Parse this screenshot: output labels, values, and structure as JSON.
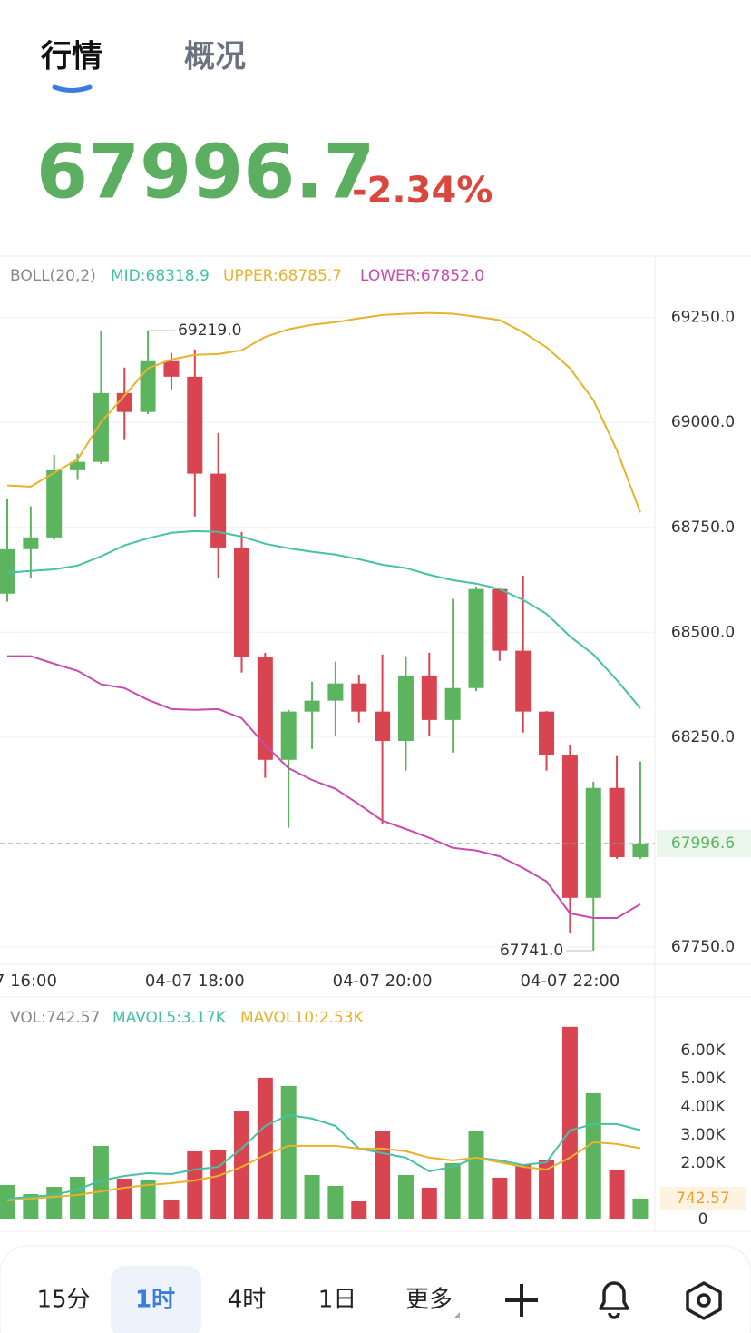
{
  "tabs": [
    "行情",
    "概况"
  ],
  "price": "67996.7",
  "change": "-2.34%",
  "chart_data": [
    {
      "type": "candlestick",
      "indicator": "BOLL(20,2)",
      "categories": [
        "04-07 16:00",
        null,
        null,
        null,
        null,
        null,
        null,
        null,
        "04-07 18:00",
        null,
        null,
        null,
        null,
        null,
        null,
        null,
        "04-07 20:00",
        null,
        null,
        null,
        null,
        null,
        null,
        null,
        "04-07 22:00",
        null,
        null,
        null
      ],
      "open": [
        68592,
        68698,
        68726,
        68886,
        68906,
        69070,
        69025,
        69146,
        69109,
        68878,
        68702,
        68440,
        68196,
        68311,
        68337,
        68378,
        68311,
        68241,
        68397,
        68291,
        68367,
        68603,
        68456,
        68311,
        68207,
        67867,
        68129,
        67964
      ],
      "high": [
        68819,
        68800,
        68923,
        68925,
        69218,
        69131,
        69219.0,
        69166,
        69174,
        68975,
        68739,
        68451,
        68315,
        68382,
        68430,
        68399,
        68447,
        68443,
        68451,
        68579,
        68609,
        68605,
        68635,
        68312,
        68231,
        68144,
        68205,
        68192
      ],
      "low": [
        68573,
        68629,
        68720,
        68863,
        68901,
        68958,
        69020,
        69079,
        68776,
        68629,
        68404,
        68153,
        68034,
        68222,
        68252,
        68285,
        68044,
        68170,
        68252,
        68213,
        68360,
        68432,
        68261,
        68170,
        67782,
        67741.0,
        67960,
        67960
      ],
      "close": [
        68698,
        68726,
        68886,
        68906,
        69070,
        69025,
        69146,
        69109,
        68878,
        68702,
        68440,
        68196,
        68311,
        68337,
        68378,
        68311,
        68241,
        68397,
        68291,
        68367,
        68603,
        68456,
        68311,
        68207,
        67867,
        68129,
        67964,
        67996.6
      ],
      "up_color": "#5cb45f",
      "down_color": "#d84450",
      "series": [
        {
          "name": "MID:68318.9",
          "color": "#45c1a6",
          "values": [
            68642,
            68646,
            68650,
            68659,
            68681,
            68707,
            68724,
            68737,
            68741,
            68739,
            68728,
            68711,
            68700,
            68692,
            68685,
            68674,
            68661,
            68653,
            68637,
            68624,
            68616,
            68603,
            68577,
            68544,
            68490,
            68447,
            68386,
            68318.9
          ]
        },
        {
          "name": "UPPER:68785.7",
          "color": "#e8b22c",
          "values": [
            68850,
            68847,
            68880,
            68912,
            69001,
            69064,
            69129,
            69150,
            69161,
            69163,
            69172,
            69204,
            69222,
            69233,
            69239,
            69248,
            69256,
            69259,
            69261,
            69259,
            69252,
            69244,
            69215,
            69179,
            69129,
            69053,
            68934,
            68785.7
          ]
        },
        {
          "name": "LOWER:67852.0",
          "color": "#c94ab0",
          "values": [
            68443,
            68443,
            68425,
            68408,
            68376,
            68367,
            68339,
            68317,
            68315,
            68317,
            68295,
            68231,
            68176,
            68148,
            68127,
            68090,
            68051,
            68031,
            68010,
            67986,
            67980,
            67966,
            67938,
            67906,
            67830,
            67819,
            67819,
            67852.0
          ]
        }
      ],
      "ylim": [
        67700,
        69390
      ],
      "yticks": [
        {
          "value": 69250,
          "label": "69250.0"
        },
        {
          "value": 69000,
          "label": "69000.0"
        },
        {
          "value": 68750,
          "label": "68750.0"
        },
        {
          "value": 68500,
          "label": "68500.0"
        },
        {
          "value": 68250,
          "label": "68250.0"
        },
        {
          "value": 67750,
          "label": "67750.0"
        }
      ],
      "grid": true,
      "current": {
        "value": 67996.6,
        "label": "67996.6"
      },
      "high_label": {
        "value": 69219.0,
        "label": "69219.0"
      },
      "low_label": {
        "value": 67741.0,
        "label": "67741.0"
      }
    },
    {
      "type": "bar",
      "indicator": "VOL:742.57",
      "values": [
        1226,
        903,
        1161,
        1516,
        2613,
        1452,
        1387,
        710,
        2419,
        2484,
        3839,
        5032,
        4742,
        1581,
        1194,
        645,
        3129,
        1581,
        1129,
        2000,
        3129,
        1484,
        1935,
        2129,
        6839,
        4484,
        1774,
        742.57
      ],
      "series": [
        {
          "name": "MAVOL5:3.17K",
          "color": "#45c1a6",
          "values": [
            742,
            806,
            871,
            1065,
            1387,
            1548,
            1645,
            1613,
            1774,
            1871,
            2516,
            3323,
            3710,
            3581,
            3323,
            2516,
            2355,
            2194,
            1710,
            1871,
            2194,
            2097,
            1935,
            2032,
            3161,
            3387,
            3387,
            3170
          ]
        },
        {
          "name": "MAVOL10:2.53K",
          "color": "#e8b22c",
          "values": [
            677,
            742,
            806,
            871,
            1000,
            1129,
            1226,
            1290,
            1387,
            1548,
            1871,
            2290,
            2613,
            2613,
            2613,
            2516,
            2516,
            2419,
            2194,
            2097,
            2194,
            2032,
            1871,
            1774,
            2194,
            2742,
            2677,
            2530
          ]
        }
      ],
      "ylim": [
        0,
        7800
      ],
      "yticks": [
        0,
        {
          "value": 2000,
          "label": "2.00K"
        },
        {
          "value": 3000,
          "label": "3.00K"
        },
        {
          "value": 4000,
          "label": "4.00K"
        },
        {
          "value": 5000,
          "label": "5.00K"
        },
        {
          "value": 6000,
          "label": "6.00K"
        }
      ],
      "current": {
        "value": 742.57,
        "label": "742.57"
      }
    }
  ],
  "toolbar": [
    "15分",
    "1时",
    "4时",
    "1日",
    "更多"
  ]
}
